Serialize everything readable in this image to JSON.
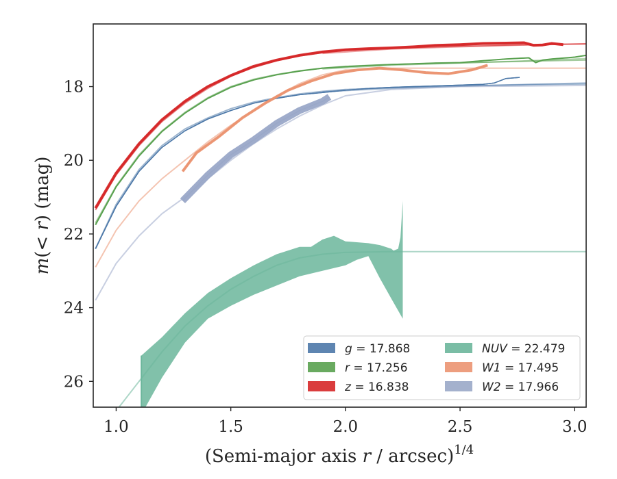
{
  "chart_data": {
    "type": "line",
    "xlabel_base": "(Semi-major axis ",
    "xlabel_var": "r",
    "xlabel_tail": " / arcsec)",
    "xlabel_sup": "1/4",
    "ylabel": "m(< r) (mag)",
    "xlim": [
      0.9,
      3.05
    ],
    "ylim": [
      26.7,
      16.3
    ],
    "y_inverted": true,
    "xticks": [
      1.0,
      1.5,
      2.0,
      2.5,
      3.0
    ],
    "xtick_labels": [
      "1.0",
      "1.5",
      "2.0",
      "2.5",
      "3.0"
    ],
    "yticks": [
      18,
      20,
      22,
      24,
      26
    ],
    "ytick_labels": [
      "18",
      "20",
      "22",
      "24",
      "26"
    ],
    "grid": false,
    "legend_position": "lower-right",
    "series": [
      {
        "name": "g = 17.868",
        "key": "g",
        "value": "17.868",
        "color": "#4c78a8",
        "model": [
          [
            0.91,
            22.4
          ],
          [
            1.0,
            21.2
          ],
          [
            1.1,
            20.25
          ],
          [
            1.2,
            19.6
          ],
          [
            1.3,
            19.15
          ],
          [
            1.4,
            18.85
          ],
          [
            1.5,
            18.6
          ],
          [
            1.6,
            18.42
          ],
          [
            1.7,
            18.3
          ],
          [
            1.8,
            18.2
          ],
          [
            1.9,
            18.13
          ],
          [
            2.0,
            18.08
          ],
          [
            2.2,
            18.03
          ],
          [
            2.4,
            18.0
          ],
          [
            2.6,
            17.97
          ],
          [
            2.8,
            17.95
          ],
          [
            3.05,
            17.93
          ]
        ],
        "model2": [
          [
            1.9,
            18.14
          ],
          [
            2.2,
            18.05
          ],
          [
            2.5,
            17.99
          ],
          [
            2.8,
            17.94
          ],
          [
            3.05,
            17.9
          ]
        ],
        "data": [
          [
            0.91,
            22.4
          ],
          [
            1.0,
            21.25
          ],
          [
            1.1,
            20.3
          ],
          [
            1.2,
            19.65
          ],
          [
            1.3,
            19.2
          ],
          [
            1.4,
            18.88
          ],
          [
            1.5,
            18.65
          ],
          [
            1.6,
            18.45
          ],
          [
            1.7,
            18.32
          ],
          [
            1.8,
            18.22
          ],
          [
            1.9,
            18.16
          ],
          [
            2.0,
            18.1
          ],
          [
            2.1,
            18.05
          ],
          [
            2.2,
            18.02
          ],
          [
            2.3,
            18.0
          ],
          [
            2.4,
            17.98
          ],
          [
            2.5,
            17.96
          ],
          [
            2.6,
            17.94
          ],
          [
            2.65,
            17.9
          ],
          [
            2.7,
            17.78
          ],
          [
            2.76,
            17.75
          ]
        ],
        "band_width": [
          1.2,
          1.5,
          2.5
        ]
      },
      {
        "name": "r = 17.256",
        "key": "r",
        "value": "17.256",
        "color": "#59a14f",
        "model": [
          [
            0.91,
            21.7
          ],
          [
            1.0,
            20.7
          ],
          [
            1.1,
            19.85
          ],
          [
            1.2,
            19.2
          ],
          [
            1.3,
            18.7
          ],
          [
            1.4,
            18.3
          ],
          [
            1.5,
            18.0
          ],
          [
            1.6,
            17.8
          ],
          [
            1.7,
            17.67
          ],
          [
            1.8,
            17.57
          ],
          [
            1.9,
            17.5
          ],
          [
            2.0,
            17.45
          ],
          [
            2.2,
            17.4
          ],
          [
            2.4,
            17.37
          ],
          [
            2.6,
            17.34
          ],
          [
            2.8,
            17.31
          ],
          [
            3.05,
            17.28
          ]
        ],
        "model2": [
          [
            1.9,
            17.52
          ],
          [
            2.2,
            17.42
          ],
          [
            2.5,
            17.36
          ],
          [
            2.8,
            17.3
          ],
          [
            3.05,
            17.24
          ]
        ],
        "data": [
          [
            0.91,
            21.75
          ],
          [
            1.0,
            20.72
          ],
          [
            1.1,
            19.88
          ],
          [
            1.2,
            19.22
          ],
          [
            1.3,
            18.72
          ],
          [
            1.4,
            18.32
          ],
          [
            1.5,
            18.02
          ],
          [
            1.6,
            17.82
          ],
          [
            1.7,
            17.68
          ],
          [
            1.8,
            17.58
          ],
          [
            1.9,
            17.5
          ],
          [
            2.0,
            17.46
          ],
          [
            2.1,
            17.43
          ],
          [
            2.2,
            17.4
          ],
          [
            2.3,
            17.38
          ],
          [
            2.4,
            17.36
          ],
          [
            2.5,
            17.35
          ],
          [
            2.6,
            17.3
          ],
          [
            2.7,
            17.25
          ],
          [
            2.8,
            17.22
          ],
          [
            2.83,
            17.35
          ],
          [
            2.86,
            17.28
          ],
          [
            2.9,
            17.25
          ],
          [
            3.0,
            17.2
          ],
          [
            3.05,
            17.15
          ]
        ],
        "band_width": [
          1.5,
          2,
          3
        ]
      },
      {
        "name": "z = 16.838",
        "key": "z",
        "value": "16.838",
        "color": "#d62728",
        "model": [
          [
            0.91,
            21.35
          ],
          [
            1.0,
            20.4
          ],
          [
            1.1,
            19.6
          ],
          [
            1.2,
            18.95
          ],
          [
            1.3,
            18.45
          ],
          [
            1.4,
            18.05
          ],
          [
            1.5,
            17.72
          ],
          [
            1.6,
            17.48
          ],
          [
            1.7,
            17.3
          ],
          [
            1.8,
            17.17
          ],
          [
            1.9,
            17.08
          ],
          [
            2.0,
            17.01
          ],
          [
            2.2,
            16.96
          ],
          [
            2.4,
            16.92
          ],
          [
            2.6,
            16.89
          ],
          [
            2.8,
            16.86
          ],
          [
            3.05,
            16.84
          ]
        ],
        "model2": [
          [
            1.9,
            17.1
          ],
          [
            2.2,
            16.98
          ],
          [
            2.5,
            16.92
          ],
          [
            2.8,
            16.87
          ],
          [
            3.05,
            16.84
          ]
        ],
        "data": [
          [
            0.91,
            21.3
          ],
          [
            1.0,
            20.35
          ],
          [
            1.1,
            19.55
          ],
          [
            1.2,
            18.9
          ],
          [
            1.3,
            18.4
          ],
          [
            1.4,
            18.0
          ],
          [
            1.5,
            17.7
          ],
          [
            1.6,
            17.45
          ],
          [
            1.7,
            17.28
          ],
          [
            1.8,
            17.15
          ],
          [
            1.9,
            17.06
          ],
          [
            2.0,
            17.0
          ],
          [
            2.1,
            16.97
          ],
          [
            2.2,
            16.95
          ],
          [
            2.3,
            16.92
          ],
          [
            2.4,
            16.88
          ],
          [
            2.5,
            16.86
          ],
          [
            2.6,
            16.83
          ],
          [
            2.7,
            16.82
          ],
          [
            2.78,
            16.81
          ],
          [
            2.82,
            16.88
          ],
          [
            2.86,
            16.87
          ],
          [
            2.9,
            16.83
          ],
          [
            2.95,
            16.86
          ]
        ],
        "band_width": [
          3,
          4,
          5
        ]
      },
      {
        "name": "NUV = 22.479",
        "key": "NUV",
        "value": "22.479",
        "color": "#6bb69b",
        "model": [
          [
            1.0,
            26.8
          ],
          [
            1.1,
            26.0
          ],
          [
            1.2,
            25.2
          ],
          [
            1.3,
            24.5
          ],
          [
            1.4,
            23.95
          ],
          [
            1.5,
            23.5
          ],
          [
            1.6,
            23.15
          ],
          [
            1.7,
            22.85
          ],
          [
            1.8,
            22.65
          ],
          [
            1.9,
            22.55
          ],
          [
            2.0,
            22.5
          ],
          [
            2.2,
            22.48
          ],
          [
            2.5,
            22.48
          ],
          [
            3.05,
            22.48
          ]
        ],
        "band_upper": [
          [
            1.11,
            25.3
          ],
          [
            1.2,
            24.8
          ],
          [
            1.3,
            24.15
          ],
          [
            1.4,
            23.6
          ],
          [
            1.5,
            23.2
          ],
          [
            1.6,
            22.85
          ],
          [
            1.7,
            22.55
          ],
          [
            1.8,
            22.35
          ],
          [
            1.85,
            22.35
          ],
          [
            1.9,
            22.15
          ],
          [
            1.95,
            22.05
          ],
          [
            2.0,
            22.2
          ],
          [
            2.1,
            22.25
          ],
          [
            2.15,
            22.3
          ],
          [
            2.2,
            22.4
          ],
          [
            2.21,
            22.45
          ],
          [
            2.23,
            22.4
          ],
          [
            2.24,
            22.1
          ],
          [
            2.25,
            21.1
          ]
        ],
        "band_lower": [
          [
            1.11,
            26.9
          ],
          [
            1.2,
            25.9
          ],
          [
            1.3,
            24.95
          ],
          [
            1.4,
            24.3
          ],
          [
            1.5,
            23.95
          ],
          [
            1.6,
            23.65
          ],
          [
            1.7,
            23.4
          ],
          [
            1.8,
            23.15
          ],
          [
            1.9,
            23.0
          ],
          [
            2.0,
            22.85
          ],
          [
            2.05,
            22.7
          ],
          [
            2.1,
            22.6
          ],
          [
            2.15,
            23.2
          ],
          [
            2.2,
            23.75
          ],
          [
            2.25,
            24.3
          ],
          [
            2.25,
            26.8
          ]
        ],
        "band_start_x": 1.11,
        "band_end_x": 2.25
      },
      {
        "name": "W1 = 17.495",
        "key": "W1",
        "value": "17.495",
        "color": "#eb9471",
        "model": [
          [
            0.91,
            22.9
          ],
          [
            1.0,
            21.9
          ],
          [
            1.1,
            21.1
          ],
          [
            1.2,
            20.5
          ],
          [
            1.3,
            20.0
          ],
          [
            1.4,
            19.5
          ],
          [
            1.5,
            19.05
          ],
          [
            1.6,
            18.65
          ],
          [
            1.7,
            18.25
          ],
          [
            1.8,
            17.92
          ],
          [
            1.9,
            17.68
          ],
          [
            2.0,
            17.55
          ],
          [
            2.2,
            17.5
          ],
          [
            2.5,
            17.5
          ],
          [
            3.05,
            17.5
          ]
        ],
        "data": [
          [
            1.29,
            20.3
          ],
          [
            1.35,
            19.8
          ],
          [
            1.45,
            19.35
          ],
          [
            1.55,
            18.85
          ],
          [
            1.65,
            18.45
          ],
          [
            1.75,
            18.1
          ],
          [
            1.85,
            17.85
          ],
          [
            1.95,
            17.65
          ],
          [
            2.05,
            17.55
          ],
          [
            2.15,
            17.5
          ],
          [
            2.25,
            17.55
          ],
          [
            2.35,
            17.62
          ],
          [
            2.45,
            17.65
          ],
          [
            2.55,
            17.55
          ],
          [
            2.62,
            17.42
          ]
        ],
        "band_width": [
          3,
          4,
          5
        ]
      },
      {
        "name": "W2 = 17.966",
        "key": "W2",
        "value": "17.966",
        "color": "#9aa8c8",
        "model": [
          [
            0.91,
            23.8
          ],
          [
            1.0,
            22.8
          ],
          [
            1.1,
            22.05
          ],
          [
            1.2,
            21.45
          ],
          [
            1.3,
            21.0
          ],
          [
            1.4,
            20.5
          ],
          [
            1.5,
            20.0
          ],
          [
            1.6,
            19.55
          ],
          [
            1.7,
            19.15
          ],
          [
            1.8,
            18.8
          ],
          [
            1.9,
            18.5
          ],
          [
            2.0,
            18.25
          ],
          [
            2.2,
            18.08
          ],
          [
            2.5,
            18.0
          ],
          [
            3.05,
            17.97
          ]
        ],
        "data": [
          [
            1.29,
            21.1
          ],
          [
            1.4,
            20.4
          ],
          [
            1.5,
            19.85
          ],
          [
            1.6,
            19.45
          ],
          [
            1.7,
            19.0
          ],
          [
            1.8,
            18.65
          ],
          [
            1.9,
            18.4
          ],
          [
            1.93,
            18.28
          ]
        ],
        "band_width": [
          8,
          10,
          13
        ]
      }
    ]
  }
}
